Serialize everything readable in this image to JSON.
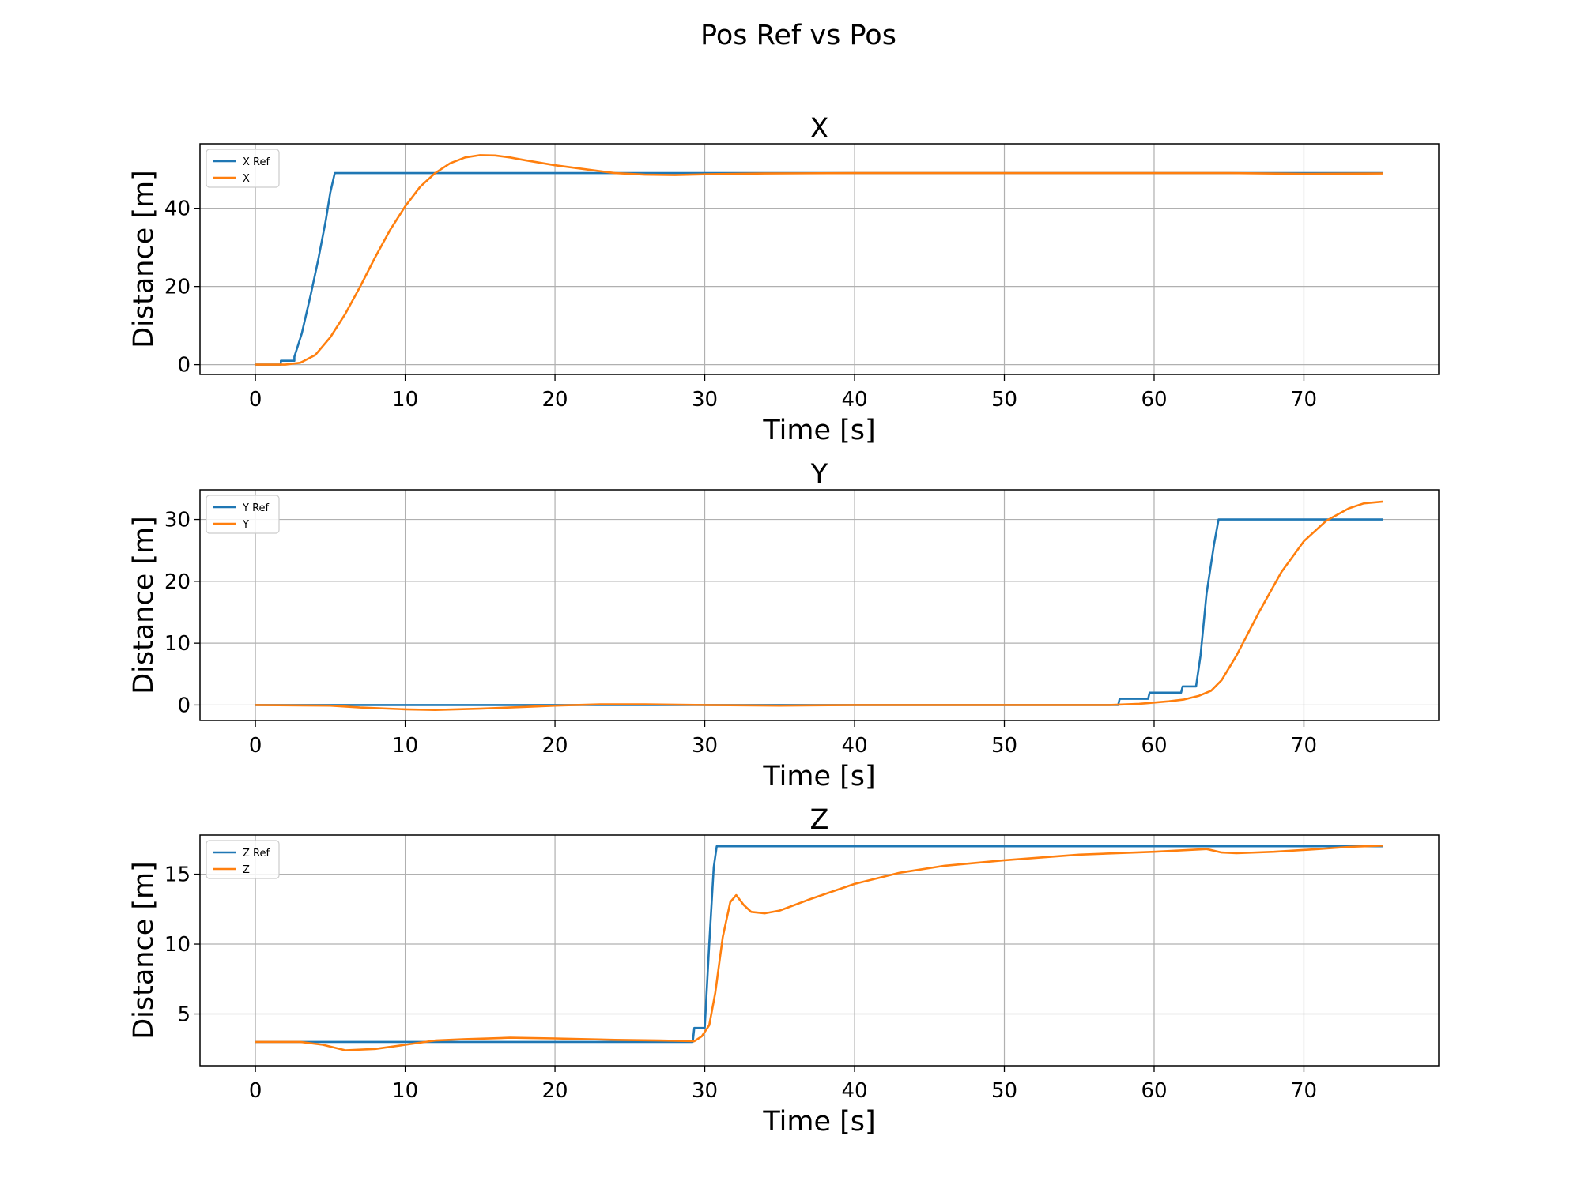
{
  "figure": {
    "suptitle": "Pos Ref vs Pos",
    "colors": {
      "ref": "#1f77b4",
      "actual": "#ff7f0e",
      "grid": "#b0b0b0"
    }
  },
  "chart_data": [
    {
      "type": "line",
      "title": "X",
      "xlabel": "Time [s]",
      "ylabel": "Distance [m]",
      "xlim": [
        -3.7,
        79
      ],
      "ylim": [
        -2.5,
        56.5
      ],
      "xticks": [
        0,
        10,
        20,
        30,
        40,
        50,
        60,
        70
      ],
      "yticks": [
        0,
        20,
        40
      ],
      "grid": true,
      "legend_position": "upper-left",
      "series": [
        {
          "name": "X Ref",
          "color": "#1f77b4",
          "points": [
            [
              0,
              0
            ],
            [
              1.7,
              0
            ],
            [
              1.7,
              1
            ],
            [
              2.6,
              1
            ],
            [
              2.6,
              2
            ],
            [
              3.1,
              8
            ],
            [
              3.7,
              18
            ],
            [
              4.2,
              27
            ],
            [
              4.7,
              37
            ],
            [
              5,
              44
            ],
            [
              5.3,
              49
            ],
            [
              75.3,
              49
            ]
          ]
        },
        {
          "name": "X",
          "color": "#ff7f0e",
          "points": [
            [
              0,
              0
            ],
            [
              2,
              0
            ],
            [
              3,
              0.5
            ],
            [
              4,
              2.5
            ],
            [
              5,
              7
            ],
            [
              6,
              13
            ],
            [
              7,
              20
            ],
            [
              8,
              27.5
            ],
            [
              9,
              34.5
            ],
            [
              10,
              40.5
            ],
            [
              11,
              45.5
            ],
            [
              12,
              49
            ],
            [
              13,
              51.5
            ],
            [
              14,
              53
            ],
            [
              15,
              53.6
            ],
            [
              16,
              53.5
            ],
            [
              17,
              53
            ],
            [
              18,
              52.3
            ],
            [
              20,
              51
            ],
            [
              22,
              50
            ],
            [
              24,
              49
            ],
            [
              26,
              48.6
            ],
            [
              28,
              48.5
            ],
            [
              30,
              48.7
            ],
            [
              34,
              48.9
            ],
            [
              40,
              49
            ],
            [
              60,
              49
            ],
            [
              65,
              49
            ],
            [
              70,
              48.8
            ],
            [
              75.3,
              48.9
            ]
          ]
        }
      ]
    },
    {
      "type": "line",
      "title": "Y",
      "xlabel": "Time [s]",
      "ylabel": "Distance [m]",
      "xlim": [
        -3.7,
        79
      ],
      "ylim": [
        -2.5,
        34.8
      ],
      "xticks": [
        0,
        10,
        20,
        30,
        40,
        50,
        60,
        70
      ],
      "yticks": [
        0,
        10,
        20,
        30
      ],
      "grid": true,
      "legend_position": "upper-left",
      "series": [
        {
          "name": "Y Ref",
          "color": "#1f77b4",
          "points": [
            [
              0,
              0
            ],
            [
              57.6,
              0
            ],
            [
              57.7,
              1
            ],
            [
              59.6,
              1
            ],
            [
              59.7,
              2
            ],
            [
              61.8,
              2
            ],
            [
              61.9,
              3
            ],
            [
              62.8,
              3
            ],
            [
              63.1,
              8
            ],
            [
              63.5,
              18
            ],
            [
              64,
              26
            ],
            [
              64.3,
              30
            ],
            [
              75.3,
              30
            ]
          ]
        },
        {
          "name": "Y",
          "color": "#ff7f0e",
          "points": [
            [
              0,
              0
            ],
            [
              5,
              -0.1
            ],
            [
              7,
              -0.4
            ],
            [
              10,
              -0.7
            ],
            [
              12,
              -0.8
            ],
            [
              15,
              -0.6
            ],
            [
              18,
              -0.3
            ],
            [
              20,
              -0.1
            ],
            [
              23,
              0.1
            ],
            [
              26,
              0.1
            ],
            [
              30,
              0
            ],
            [
              35,
              -0.1
            ],
            [
              40,
              0
            ],
            [
              50,
              0
            ],
            [
              57,
              0
            ],
            [
              59,
              0.2
            ],
            [
              61,
              0.6
            ],
            [
              62,
              0.9
            ],
            [
              63,
              1.5
            ],
            [
              63.8,
              2.3
            ],
            [
              64.5,
              4
            ],
            [
              65.5,
              8
            ],
            [
              67,
              15
            ],
            [
              68.5,
              21.5
            ],
            [
              70,
              26.5
            ],
            [
              71.5,
              29.8
            ],
            [
              73,
              31.8
            ],
            [
              74,
              32.6
            ],
            [
              75.3,
              32.9
            ]
          ]
        }
      ]
    },
    {
      "type": "line",
      "title": "Z",
      "xlabel": "Time [s]",
      "ylabel": "Distance [m]",
      "xlim": [
        -3.7,
        79
      ],
      "ylim": [
        1.3,
        17.8
      ],
      "xticks": [
        0,
        10,
        20,
        30,
        40,
        50,
        60,
        70
      ],
      "yticks": [
        5,
        10,
        15
      ],
      "grid": true,
      "legend_position": "upper-left",
      "series": [
        {
          "name": "Z Ref",
          "color": "#1f77b4",
          "points": [
            [
              0,
              3
            ],
            [
              29.2,
              3
            ],
            [
              29.3,
              4
            ],
            [
              30,
              4
            ],
            [
              30.3,
              10
            ],
            [
              30.6,
              15.5
            ],
            [
              30.8,
              17
            ],
            [
              75.3,
              17
            ]
          ]
        },
        {
          "name": "Z",
          "color": "#ff7f0e",
          "points": [
            [
              0,
              3
            ],
            [
              3,
              3
            ],
            [
              4.5,
              2.8
            ],
            [
              6,
              2.4
            ],
            [
              8,
              2.5
            ],
            [
              10,
              2.8
            ],
            [
              12,
              3.1
            ],
            [
              14,
              3.2
            ],
            [
              17,
              3.3
            ],
            [
              20,
              3.25
            ],
            [
              24,
              3.15
            ],
            [
              27,
              3.1
            ],
            [
              29.3,
              3.05
            ],
            [
              29.8,
              3.4
            ],
            [
              30.3,
              4.2
            ],
            [
              30.7,
              6.5
            ],
            [
              31.2,
              10.5
            ],
            [
              31.7,
              13
            ],
            [
              32.1,
              13.5
            ],
            [
              32.6,
              12.8
            ],
            [
              33.1,
              12.3
            ],
            [
              34,
              12.2
            ],
            [
              35,
              12.4
            ],
            [
              37,
              13.2
            ],
            [
              40,
              14.3
            ],
            [
              43,
              15.1
            ],
            [
              46,
              15.6
            ],
            [
              50,
              16
            ],
            [
              55,
              16.4
            ],
            [
              60,
              16.6
            ],
            [
              63.5,
              16.8
            ],
            [
              64.5,
              16.55
            ],
            [
              65.5,
              16.5
            ],
            [
              68,
              16.6
            ],
            [
              71,
              16.8
            ],
            [
              73,
              16.95
            ],
            [
              75.3,
              17.05
            ]
          ]
        }
      ]
    }
  ]
}
